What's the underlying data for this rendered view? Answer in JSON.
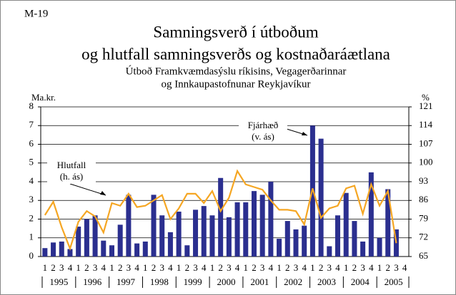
{
  "chart_data": {
    "type": "bar_line",
    "label": "M-19",
    "title": [
      "Samningsverð í útboðum",
      "og hlutfall samningsverðs og kostnaðaráætlana"
    ],
    "subtitle": [
      "Útboð Framkvæmdasýslu ríkisins, Vegagerðarinnar",
      "og Innkaupastofnunar Reykjavíkur"
    ],
    "y_label": "Ma.kr.",
    "y2_label": "%",
    "categories": [
      "1",
      "2",
      "3",
      "4",
      "1",
      "2",
      "3",
      "4",
      "1",
      "2",
      "3",
      "4",
      "1",
      "2",
      "3",
      "4",
      "1",
      "2",
      "3",
      "4",
      "1",
      "2",
      "3",
      "4",
      "1",
      "2",
      "3",
      "4",
      "1",
      "2",
      "3",
      "4",
      "1",
      "2",
      "3",
      "4",
      "1",
      "2",
      "3",
      "4",
      "1",
      "2",
      "3",
      "4"
    ],
    "years": [
      "1995",
      "1996",
      "1997",
      "1998",
      "1999",
      "2000",
      "2001",
      "2002",
      "2003",
      "2004",
      "2005"
    ],
    "series": [
      {
        "name": "Fjárhæð (v. ás)",
        "kind": "bar",
        "color": "#2b2f8f",
        "values": [
          0.45,
          0.75,
          0.8,
          0.4,
          1.6,
          2.0,
          2.2,
          0.85,
          0.6,
          1.7,
          3.3,
          0.7,
          0.8,
          3.3,
          2.2,
          1.3,
          2.4,
          0.6,
          2.5,
          2.7,
          2.2,
          4.2,
          2.1,
          2.9,
          2.9,
          3.5,
          3.3,
          4.0,
          0.95,
          1.9,
          1.45,
          1.65,
          7.0,
          6.3,
          0.55,
          2.2,
          3.4,
          1.9,
          0.8,
          4.5,
          1.0,
          3.6,
          1.45,
          null
        ]
      },
      {
        "name": "Hlutfall (h. ás)",
        "kind": "line",
        "axis": "y2",
        "color": "#f5a623",
        "values": [
          80.5,
          85.5,
          76,
          68,
          78,
          82,
          80,
          74,
          85,
          84,
          88.5,
          83.5,
          84,
          86,
          88,
          79,
          83,
          88.5,
          88.5,
          85,
          89.5,
          82,
          87,
          97,
          92,
          91,
          90,
          86,
          82.5,
          82.5,
          82,
          77,
          90.5,
          79.5,
          83,
          84,
          90.5,
          91.5,
          81,
          92,
          84,
          89.5,
          70,
          null
        ]
      }
    ],
    "ylim": [
      0,
      8
    ],
    "yticks": [
      0,
      1,
      2,
      3,
      4,
      5,
      6,
      7,
      8
    ],
    "y2lim": [
      65,
      121
    ],
    "y2ticks": [
      65,
      72,
      79,
      86,
      93,
      100,
      107,
      114,
      121
    ],
    "grid": true
  }
}
